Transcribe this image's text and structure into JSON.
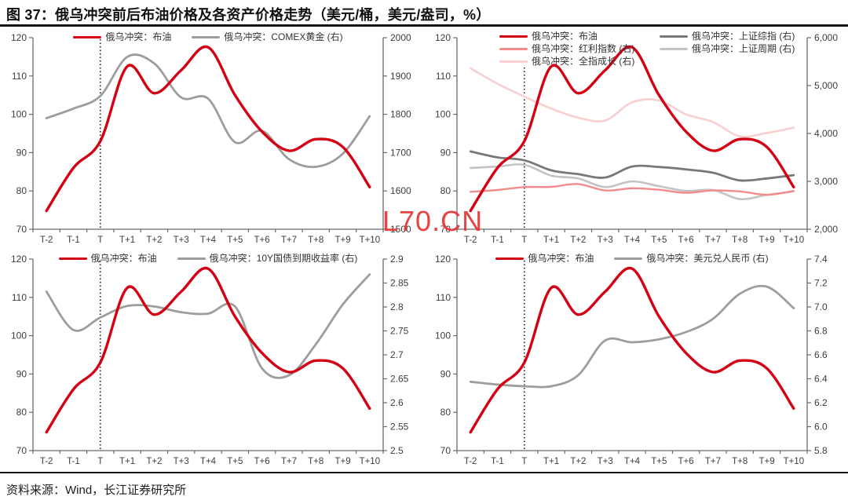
{
  "title": "图 37：俄乌冲突前后布油价格及各资产价格走势（美元/桶，美元/盎司，%）",
  "source": "资料来源：Wind，长江证券研究所",
  "watermark": "L70.CN",
  "colors": {
    "brent_red": "#d40014",
    "mid_gray": "#9d9d9d",
    "dark_gray": "#787878",
    "light_gray": "#c3c3c3",
    "salmon": "#f38b8b",
    "light_pink": "#f9cfcf",
    "axis_line": "#6b6b6b",
    "tick_text": "#3d3d3d",
    "event_line": "#1a1a1a",
    "watermark_red": "#e63434"
  },
  "chart_data": [
    {
      "type": "line",
      "name": "brent-vs-comex-gold",
      "categories": [
        "T-2",
        "T-1",
        "T",
        "T+1",
        "T+2",
        "T+3",
        "T+4",
        "T+5",
        "T+6",
        "T+7",
        "T+8",
        "T+9",
        "T+10"
      ],
      "event_line_index": 2,
      "legend_layout": "row",
      "legend_position": "top-center",
      "grid": false,
      "left_axis": {
        "min": 70,
        "max": 120,
        "ticks": [
          70,
          80,
          90,
          100,
          110,
          120
        ],
        "labels": [
          "70",
          "80",
          "90",
          "100",
          "110",
          "120"
        ]
      },
      "right_axis": {
        "min": 1500,
        "max": 2000,
        "ticks": [
          1500,
          1600,
          1700,
          1800,
          1900,
          2000
        ],
        "labels": [
          "1500",
          "1600",
          "1700",
          "1800",
          "1900",
          "2000"
        ]
      },
      "series": [
        {
          "name": "俄乌冲突：布油",
          "axis": "left",
          "color": "#d40014",
          "width": 3.4,
          "values": [
            74.8,
            86,
            93,
            112.5,
            105.5,
            111.5,
            117.5,
            105,
            95.5,
            90.5,
            93.5,
            91.5,
            81
          ]
        },
        {
          "name": "俄乌冲突：COMEX黄金 (右)",
          "axis": "right",
          "color": "#9d9d9d",
          "width": 2.8,
          "values": [
            1790,
            1815,
            1848,
            1950,
            1933,
            1844,
            1841,
            1727,
            1757,
            1683,
            1663,
            1697,
            1795
          ]
        }
      ]
    },
    {
      "type": "line",
      "name": "brent-vs-a-share-indices",
      "categories": [
        "T-2",
        "T-1",
        "T",
        "T+1",
        "T+2",
        "T+3",
        "T+4",
        "T+5",
        "T+6",
        "T+7",
        "T+8",
        "T+9",
        "T+10"
      ],
      "event_line_index": 2,
      "legend_layout": "columns",
      "legend_split": 3,
      "legend_position": "top-left-two-columns",
      "grid": false,
      "left_axis": {
        "min": 70,
        "max": 120,
        "ticks": [
          70,
          80,
          90,
          100,
          110,
          120
        ],
        "labels": [
          "70",
          "80",
          "90",
          "100",
          "110",
          "120"
        ]
      },
      "right_axis": {
        "min": 2000,
        "max": 6000,
        "ticks": [
          2000,
          3000,
          4000,
          5000,
          6000
        ],
        "labels": [
          "2,000",
          "3,000",
          "4,000",
          "5,000",
          "6,000"
        ]
      },
      "series": [
        {
          "name": "俄乌冲突：布油",
          "axis": "left",
          "color": "#d40014",
          "width": 3.4,
          "values": [
            74.8,
            86,
            93,
            112.5,
            105.5,
            111.5,
            117.5,
            105,
            95.5,
            90.5,
            93.5,
            91.5,
            81
          ]
        },
        {
          "name": "俄乌冲突：红利指数 (右)",
          "axis": "right",
          "color": "#f38b8b",
          "width": 2.4,
          "values": [
            2780,
            2820,
            2880,
            2885,
            2945,
            2810,
            2855,
            2825,
            2760,
            2810,
            2790,
            2720,
            2800
          ]
        },
        {
          "name": "俄乌冲突：全指成长 (右)",
          "axis": "right",
          "color": "#f9cfcf",
          "width": 2.6,
          "values": [
            5360,
            5040,
            4770,
            4520,
            4330,
            4270,
            4650,
            4690,
            4400,
            4240,
            3940,
            4010,
            4120
          ]
        },
        {
          "name": "俄乌冲突：上证综指 (右)",
          "axis": "right",
          "color": "#787878",
          "width": 2.8,
          "values": [
            3625,
            3500,
            3440,
            3230,
            3150,
            3080,
            3310,
            3300,
            3250,
            3180,
            3020,
            3060,
            3130
          ]
        },
        {
          "name": "俄乌冲突：上证周期 (右)",
          "axis": "right",
          "color": "#c3c3c3",
          "width": 2.6,
          "values": [
            3280,
            3310,
            3345,
            3120,
            3060,
            2880,
            3000,
            2900,
            2800,
            2820,
            2630,
            2715,
            2790
          ]
        }
      ]
    },
    {
      "type": "line",
      "name": "brent-vs-10y-cgb-yield",
      "categories": [
        "T-2",
        "T-1",
        "T",
        "T+1",
        "T+2",
        "T+3",
        "T+4",
        "T+5",
        "T+6",
        "T+7",
        "T+8",
        "T+9",
        "T+10"
      ],
      "event_line_index": 2,
      "legend_layout": "row",
      "legend_position": "top-center",
      "grid": false,
      "left_axis": {
        "min": 70,
        "max": 120,
        "ticks": [
          70,
          80,
          90,
          100,
          110,
          120
        ],
        "labels": [
          "70",
          "80",
          "90",
          "100",
          "110",
          "120"
        ]
      },
      "right_axis": {
        "min": 2.5,
        "max": 2.9,
        "ticks": [
          2.5,
          2.55,
          2.6,
          2.65,
          2.7,
          2.75,
          2.8,
          2.85,
          2.9
        ],
        "labels": [
          "2.5",
          "2.55",
          "2.6",
          "2.65",
          "2.7",
          "2.75",
          "2.8",
          "2.85",
          "2.9"
        ]
      },
      "series": [
        {
          "name": "俄乌冲突：布油",
          "axis": "left",
          "color": "#d40014",
          "width": 3.4,
          "values": [
            74.8,
            86,
            93,
            112.5,
            105.5,
            111.5,
            117.5,
            105,
            95.5,
            90.5,
            93.5,
            91.5,
            81
          ]
        },
        {
          "name": "俄乌冲突：10Y国债到期收益率 (右)",
          "axis": "right",
          "color": "#9d9d9d",
          "width": 2.8,
          "values": [
            2.832,
            2.752,
            2.778,
            2.802,
            2.801,
            2.789,
            2.786,
            2.801,
            2.672,
            2.657,
            2.722,
            2.805,
            2.868
          ]
        }
      ]
    },
    {
      "type": "line",
      "name": "brent-vs-usdcny",
      "categories": [
        "T-2",
        "T-1",
        "T",
        "T+1",
        "T+2",
        "T+3",
        "T+4",
        "T+5",
        "T+6",
        "T+7",
        "T+8",
        "T+9",
        "T+10"
      ],
      "event_line_index": 2,
      "legend_layout": "row",
      "legend_position": "top-center",
      "grid": false,
      "left_axis": {
        "min": 70,
        "max": 120,
        "ticks": [
          70,
          80,
          90,
          100,
          110,
          120
        ],
        "labels": [
          "70",
          "80",
          "90",
          "100",
          "110",
          "120"
        ]
      },
      "right_axis": {
        "min": 5.8,
        "max": 7.4,
        "ticks": [
          5.8,
          6.0,
          6.2,
          6.4,
          6.6,
          6.8,
          7.0,
          7.2,
          7.4
        ],
        "labels": [
          "5.8",
          "6.0",
          "6.2",
          "6.4",
          "6.6",
          "6.8",
          "7.0",
          "7.2",
          "7.4"
        ]
      },
      "series": [
        {
          "name": "俄乌冲突：布油",
          "axis": "left",
          "color": "#d40014",
          "width": 3.4,
          "values": [
            74.8,
            86,
            93,
            112.5,
            105.5,
            111.5,
            117.5,
            105,
            95.5,
            90.5,
            93.5,
            91.5,
            81
          ]
        },
        {
          "name": "俄乌冲突：美元兑人民币 (右)",
          "axis": "right",
          "color": "#9d9d9d",
          "width": 2.8,
          "values": [
            6.375,
            6.352,
            6.338,
            6.338,
            6.43,
            6.72,
            6.705,
            6.73,
            6.79,
            6.9,
            7.11,
            7.17,
            6.99
          ]
        }
      ]
    }
  ]
}
